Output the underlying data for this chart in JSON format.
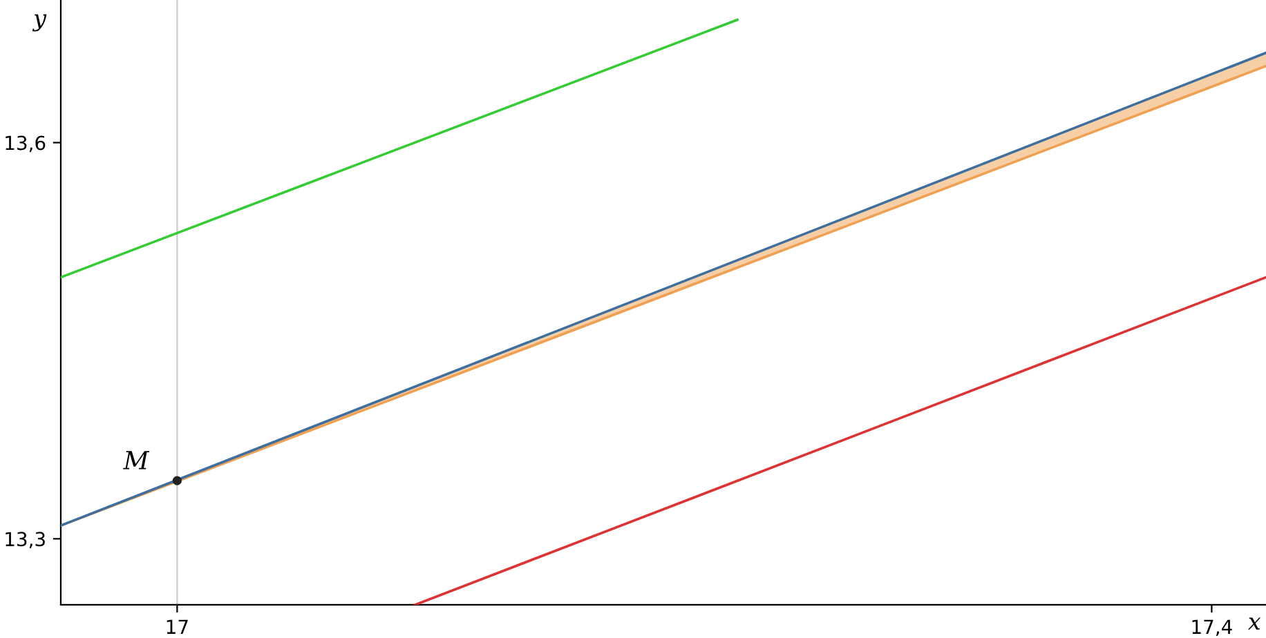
{
  "chart_data": {
    "type": "line",
    "xlabel": "x",
    "ylabel": "y",
    "xlim": [
      16.955,
      17.421
    ],
    "ylim": [
      13.25,
      13.708
    ],
    "xticks": [
      17,
      {
        "value": 17.4,
        "label": "17,4"
      }
    ],
    "yticks": [
      {
        "value": 13.3,
        "label": "13,3"
      },
      {
        "value": 13.6,
        "label": "13,6"
      }
    ],
    "grid": false,
    "legend": false,
    "ref_lines": [
      {
        "axis": "x",
        "value": 17,
        "color": "#cccccc"
      }
    ],
    "series": [
      {
        "color": "#f0a050",
        "x": [
          16.955,
          17.421
        ],
        "values": [
          13.31,
          13.658
        ],
        "lower": [
          13.31,
          13.658
        ],
        "upper": [
          13.31,
          13.668
        ]
      },
      {
        "color": "#3f6f9f",
        "x": [
          16.955,
          17.421
        ],
        "values": [
          13.31,
          13.668
        ]
      },
      {
        "color": "#33cc33",
        "x": [
          16.955,
          17.2166
        ],
        "values": [
          13.498,
          13.693
        ]
      },
      {
        "color": "#dd3333",
        "x": [
          17.092,
          17.421
        ],
        "values": [
          13.25,
          13.498
        ]
      },
      {
        "type": "scatter",
        "name": "M",
        "color": "#222222",
        "x": [
          17
        ],
        "values": [
          13.344
        ]
      }
    ]
  }
}
